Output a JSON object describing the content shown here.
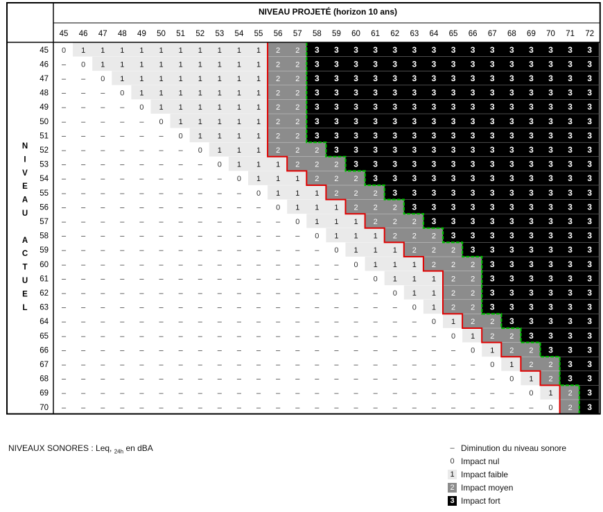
{
  "header": {
    "title": "NIVEAU PROJETÉ (horizon 10 ans)",
    "columns": [
      "45",
      "46",
      "47",
      "48",
      "49",
      "50",
      "51",
      "52",
      "53",
      "54",
      "55",
      "56",
      "57",
      "58",
      "59",
      "60",
      "61",
      "62",
      "63",
      "64",
      "65",
      "66",
      "67",
      "68",
      "69",
      "70",
      "71",
      "72"
    ]
  },
  "rows_header": {
    "title_letters": [
      "N",
      "I",
      "V",
      "E",
      "A",
      "U",
      "",
      "A",
      "C",
      "T",
      "U",
      "E",
      "L"
    ],
    "rows": [
      "45",
      "46",
      "47",
      "48",
      "49",
      "50",
      "51",
      "52",
      "53",
      "54",
      "55",
      "56",
      "57",
      "58",
      "59",
      "60",
      "61",
      "62",
      "63",
      "64",
      "65",
      "66",
      "67",
      "68",
      "69",
      "70"
    ]
  },
  "chart_data": {
    "type": "table",
    "row_values": [
      45,
      46,
      47,
      48,
      49,
      50,
      51,
      52,
      53,
      54,
      55,
      56,
      57,
      58,
      59,
      60,
      61,
      62,
      63,
      64,
      65,
      66,
      67,
      68,
      69,
      70
    ],
    "col_values": [
      45,
      46,
      47,
      48,
      49,
      50,
      51,
      52,
      53,
      54,
      55,
      56,
      57,
      58,
      59,
      60,
      61,
      62,
      63,
      64,
      65,
      66,
      67,
      68,
      69,
      70,
      71,
      72
    ],
    "cells": [
      [
        "0",
        "1",
        "1",
        "1",
        "1",
        "1",
        "1",
        "1",
        "1",
        "1",
        "1",
        "2",
        "2",
        "3",
        "3",
        "3",
        "3",
        "3",
        "3",
        "3",
        "3",
        "3",
        "3",
        "3",
        "3",
        "3",
        "3",
        "3"
      ],
      [
        "–",
        "0",
        "1",
        "1",
        "1",
        "1",
        "1",
        "1",
        "1",
        "1",
        "1",
        "2",
        "2",
        "3",
        "3",
        "3",
        "3",
        "3",
        "3",
        "3",
        "3",
        "3",
        "3",
        "3",
        "3",
        "3",
        "3",
        "3"
      ],
      [
        "–",
        "–",
        "0",
        "1",
        "1",
        "1",
        "1",
        "1",
        "1",
        "1",
        "1",
        "2",
        "2",
        "3",
        "3",
        "3",
        "3",
        "3",
        "3",
        "3",
        "3",
        "3",
        "3",
        "3",
        "3",
        "3",
        "3",
        "3"
      ],
      [
        "–",
        "–",
        "–",
        "0",
        "1",
        "1",
        "1",
        "1",
        "1",
        "1",
        "1",
        "2",
        "2",
        "3",
        "3",
        "3",
        "3",
        "3",
        "3",
        "3",
        "3",
        "3",
        "3",
        "3",
        "3",
        "3",
        "3",
        "3"
      ],
      [
        "–",
        "–",
        "–",
        "–",
        "0",
        "1",
        "1",
        "1",
        "1",
        "1",
        "1",
        "2",
        "2",
        "3",
        "3",
        "3",
        "3",
        "3",
        "3",
        "3",
        "3",
        "3",
        "3",
        "3",
        "3",
        "3",
        "3",
        "3"
      ],
      [
        "–",
        "–",
        "–",
        "–",
        "–",
        "0",
        "1",
        "1",
        "1",
        "1",
        "1",
        "2",
        "2",
        "3",
        "3",
        "3",
        "3",
        "3",
        "3",
        "3",
        "3",
        "3",
        "3",
        "3",
        "3",
        "3",
        "3",
        "3"
      ],
      [
        "–",
        "–",
        "–",
        "–",
        "–",
        "–",
        "0",
        "1",
        "1",
        "1",
        "1",
        "2",
        "2",
        "3",
        "3",
        "3",
        "3",
        "3",
        "3",
        "3",
        "3",
        "3",
        "3",
        "3",
        "3",
        "3",
        "3",
        "3"
      ],
      [
        "–",
        "–",
        "–",
        "–",
        "–",
        "–",
        "–",
        "0",
        "1",
        "1",
        "1",
        "2",
        "2",
        "2",
        "3",
        "3",
        "3",
        "3",
        "3",
        "3",
        "3",
        "3",
        "3",
        "3",
        "3",
        "3",
        "3",
        "3"
      ],
      [
        "–",
        "–",
        "–",
        "–",
        "–",
        "–",
        "–",
        "–",
        "0",
        "1",
        "1",
        "1",
        "2",
        "2",
        "2",
        "3",
        "3",
        "3",
        "3",
        "3",
        "3",
        "3",
        "3",
        "3",
        "3",
        "3",
        "3",
        "3"
      ],
      [
        "–",
        "–",
        "–",
        "–",
        "–",
        "–",
        "–",
        "–",
        "–",
        "0",
        "1",
        "1",
        "1",
        "2",
        "2",
        "2",
        "3",
        "3",
        "3",
        "3",
        "3",
        "3",
        "3",
        "3",
        "3",
        "3",
        "3",
        "3"
      ],
      [
        "–",
        "–",
        "–",
        "–",
        "–",
        "–",
        "–",
        "–",
        "–",
        "–",
        "0",
        "1",
        "1",
        "1",
        "2",
        "2",
        "2",
        "3",
        "3",
        "3",
        "3",
        "3",
        "3",
        "3",
        "3",
        "3",
        "3",
        "3"
      ],
      [
        "–",
        "–",
        "–",
        "–",
        "–",
        "–",
        "–",
        "–",
        "–",
        "–",
        "–",
        "0",
        "1",
        "1",
        "1",
        "2",
        "2",
        "2",
        "3",
        "3",
        "3",
        "3",
        "3",
        "3",
        "3",
        "3",
        "3",
        "3"
      ],
      [
        "–",
        "–",
        "–",
        "–",
        "–",
        "–",
        "–",
        "–",
        "–",
        "–",
        "–",
        "–",
        "0",
        "1",
        "1",
        "1",
        "2",
        "2",
        "2",
        "3",
        "3",
        "3",
        "3",
        "3",
        "3",
        "3",
        "3",
        "3"
      ],
      [
        "–",
        "–",
        "–",
        "–",
        "–",
        "–",
        "–",
        "–",
        "–",
        "–",
        "–",
        "–",
        "–",
        "0",
        "1",
        "1",
        "1",
        "2",
        "2",
        "2",
        "3",
        "3",
        "3",
        "3",
        "3",
        "3",
        "3",
        "3"
      ],
      [
        "–",
        "–",
        "–",
        "–",
        "–",
        "–",
        "–",
        "–",
        "–",
        "–",
        "–",
        "–",
        "–",
        "–",
        "0",
        "1",
        "1",
        "1",
        "2",
        "2",
        "2",
        "3",
        "3",
        "3",
        "3",
        "3",
        "3",
        "3"
      ],
      [
        "–",
        "–",
        "–",
        "–",
        "–",
        "–",
        "–",
        "–",
        "–",
        "–",
        "–",
        "–",
        "–",
        "–",
        "–",
        "0",
        "1",
        "1",
        "1",
        "2",
        "2",
        "2",
        "3",
        "3",
        "3",
        "3",
        "3",
        "3"
      ],
      [
        "–",
        "–",
        "–",
        "–",
        "–",
        "–",
        "–",
        "–",
        "–",
        "–",
        "–",
        "–",
        "–",
        "–",
        "–",
        "–",
        "0",
        "1",
        "1",
        "1",
        "2",
        "2",
        "3",
        "3",
        "3",
        "3",
        "3",
        "3"
      ],
      [
        "–",
        "–",
        "–",
        "–",
        "–",
        "–",
        "–",
        "–",
        "–",
        "–",
        "–",
        "–",
        "–",
        "–",
        "–",
        "–",
        "–",
        "0",
        "1",
        "1",
        "2",
        "2",
        "3",
        "3",
        "3",
        "3",
        "3",
        "3"
      ],
      [
        "–",
        "–",
        "–",
        "–",
        "–",
        "–",
        "–",
        "–",
        "–",
        "–",
        "–",
        "–",
        "–",
        "–",
        "–",
        "–",
        "–",
        "–",
        "0",
        "1",
        "2",
        "2",
        "3",
        "3",
        "3",
        "3",
        "3",
        "3"
      ],
      [
        "–",
        "–",
        "–",
        "–",
        "–",
        "–",
        "–",
        "–",
        "–",
        "–",
        "–",
        "–",
        "–",
        "–",
        "–",
        "–",
        "–",
        "–",
        "–",
        "0",
        "1",
        "2",
        "2",
        "3",
        "3",
        "3",
        "3",
        "3"
      ],
      [
        "–",
        "–",
        "–",
        "–",
        "–",
        "–",
        "–",
        "–",
        "–",
        "–",
        "–",
        "–",
        "–",
        "–",
        "–",
        "–",
        "–",
        "–",
        "–",
        "–",
        "0",
        "1",
        "2",
        "2",
        "3",
        "3",
        "3",
        "3"
      ],
      [
        "–",
        "–",
        "–",
        "–",
        "–",
        "–",
        "–",
        "–",
        "–",
        "–",
        "–",
        "–",
        "–",
        "–",
        "–",
        "–",
        "–",
        "–",
        "–",
        "–",
        "–",
        "0",
        "1",
        "2",
        "2",
        "3",
        "3",
        "3"
      ],
      [
        "–",
        "–",
        "–",
        "–",
        "–",
        "–",
        "–",
        "–",
        "–",
        "–",
        "–",
        "–",
        "–",
        "–",
        "–",
        "–",
        "–",
        "–",
        "–",
        "–",
        "–",
        "–",
        "0",
        "1",
        "2",
        "2",
        "3",
        "3"
      ],
      [
        "–",
        "–",
        "–",
        "–",
        "–",
        "–",
        "–",
        "–",
        "–",
        "–",
        "–",
        "–",
        "–",
        "–",
        "–",
        "–",
        "–",
        "–",
        "–",
        "–",
        "–",
        "–",
        "–",
        "0",
        "1",
        "2",
        "3",
        "3"
      ],
      [
        "–",
        "–",
        "–",
        "–",
        "–",
        "–",
        "–",
        "–",
        "–",
        "–",
        "–",
        "–",
        "–",
        "–",
        "–",
        "–",
        "–",
        "–",
        "–",
        "–",
        "–",
        "–",
        "–",
        "–",
        "0",
        "1",
        "2",
        "3"
      ],
      [
        "–",
        "–",
        "–",
        "–",
        "–",
        "–",
        "–",
        "–",
        "–",
        "–",
        "–",
        "–",
        "–",
        "–",
        "–",
        "–",
        "–",
        "–",
        "–",
        "–",
        "–",
        "–",
        "–",
        "–",
        "–",
        "0",
        "2",
        "3"
      ]
    ]
  },
  "colors": {
    "minus": "#ffffff",
    "level0": "#ffffff",
    "level1": "#eaeaea",
    "level2": "#8c8c8c",
    "level3": "#000000",
    "red_line": "#e00000",
    "green_line": "#00c000"
  },
  "footer": {
    "units_label": "NIVEAUX SONORES : Leq,",
    "units_sub": "24h",
    "units_suffix": "en dBA"
  },
  "legend": [
    {
      "symbol": "–",
      "label": "Diminution du niveau sonore",
      "kind": "minus"
    },
    {
      "symbol": "0",
      "label": "Impact nul",
      "kind": "l0"
    },
    {
      "symbol": "1",
      "label": "Impact faible",
      "kind": "l1"
    },
    {
      "symbol": "2",
      "label": "Impact moyen",
      "kind": "l2"
    },
    {
      "symbol": "3",
      "label": "Impact fort",
      "kind": "l3"
    }
  ]
}
